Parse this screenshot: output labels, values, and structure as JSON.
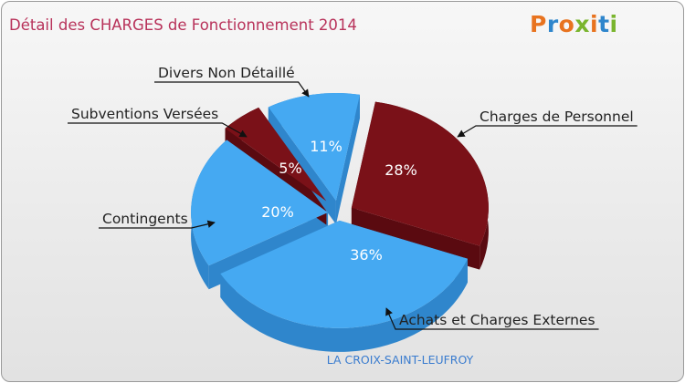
{
  "chart_data": {
    "type": "pie",
    "title": "Détail des CHARGES de Fonctionnement 2014",
    "subtitle": "LA CROIX-SAINT-LEUFROY",
    "logo": "Proxiti",
    "slices": [
      {
        "label": "Charges de Personnel",
        "value": 28,
        "pct_label": "28%",
        "color": "#7a1118",
        "side": "#5a0a10"
      },
      {
        "label": "Achats et Charges Externes",
        "value": 36,
        "pct_label": "36%",
        "color": "#45a9f2",
        "side": "#2f86cc"
      },
      {
        "label": "Contingents",
        "value": 20,
        "pct_label": "20%",
        "color": "#45a9f2",
        "side": "#2f86cc"
      },
      {
        "label": "Subventions Versées",
        "value": 5,
        "pct_label": "5%",
        "color": "#7a1118",
        "side": "#5a0a10"
      },
      {
        "label": "Divers Non Détaillé",
        "value": 11,
        "pct_label": "11%",
        "color": "#45a9f2",
        "side": "#2f86cc"
      }
    ],
    "colors": {
      "title": "#b8325a",
      "subtitle": "#3a7ccf"
    }
  }
}
